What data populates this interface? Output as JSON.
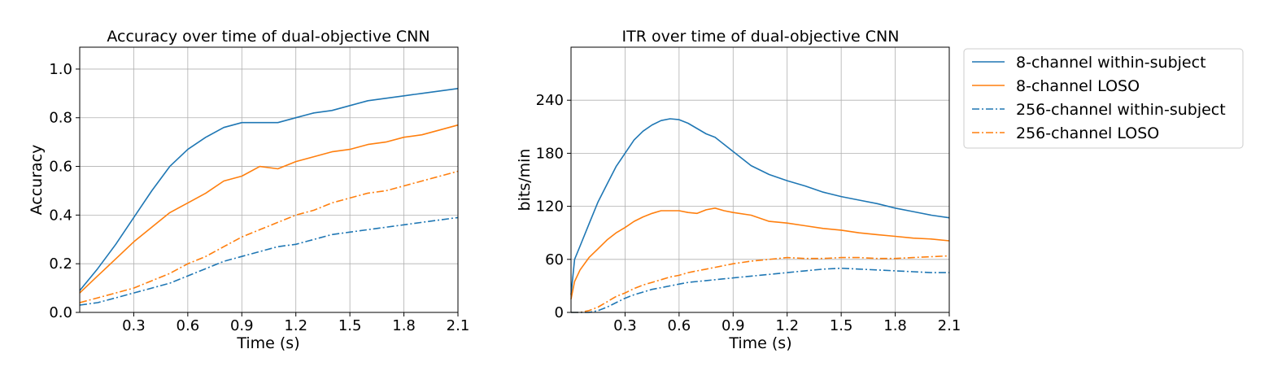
{
  "figure": {
    "legend": {
      "placement": "outside-right-top",
      "entries": [
        {
          "label": "8-channel within-subject",
          "color": "#1f77b4",
          "dash": "solid"
        },
        {
          "label": "8-channel LOSO",
          "color": "#ff7f0e",
          "dash": "solid"
        },
        {
          "label": "256-channel within-subject",
          "color": "#1f77b4",
          "dash": "dashdot"
        },
        {
          "label": "256-channel LOSO",
          "color": "#ff7f0e",
          "dash": "dashdot"
        }
      ]
    }
  },
  "chart_data": [
    {
      "type": "line",
      "title": "Accuracy over time of dual-objective CNN",
      "xlabel": "Time (s)",
      "ylabel": "Accuracy",
      "xlim": [
        0.0,
        2.1
      ],
      "ylim": [
        0.0,
        1.09
      ],
      "xticks": [
        0.3,
        0.6,
        0.9,
        1.2,
        1.5,
        1.8,
        2.1
      ],
      "xtick_labels": [
        "0.3",
        "0.6",
        "0.9",
        "1.2",
        "1.5",
        "1.8",
        "2.1"
      ],
      "yticks": [
        0.0,
        0.2,
        0.4,
        0.6,
        0.8,
        1.0
      ],
      "ytick_labels": [
        "0.0",
        "0.2",
        "0.4",
        "0.6",
        "0.8",
        "1.0"
      ],
      "grid": true,
      "x": [
        0.0,
        0.1,
        0.2,
        0.3,
        0.4,
        0.5,
        0.6,
        0.7,
        0.8,
        0.9,
        1.0,
        1.1,
        1.2,
        1.3,
        1.4,
        1.5,
        1.6,
        1.7,
        1.8,
        1.9,
        2.0,
        2.1
      ],
      "series": [
        {
          "name": "8-channel within-subject",
          "color": "#1f77b4",
          "dash": "solid",
          "values": [
            0.09,
            0.18,
            0.28,
            0.39,
            0.5,
            0.6,
            0.67,
            0.72,
            0.76,
            0.78,
            0.78,
            0.78,
            0.8,
            0.82,
            0.83,
            0.85,
            0.87,
            0.88,
            0.89,
            0.9,
            0.91,
            0.92
          ]
        },
        {
          "name": "8-channel LOSO",
          "color": "#ff7f0e",
          "dash": "solid",
          "values": [
            0.08,
            0.15,
            0.22,
            0.29,
            0.35,
            0.41,
            0.45,
            0.49,
            0.54,
            0.56,
            0.6,
            0.59,
            0.62,
            0.64,
            0.66,
            0.67,
            0.69,
            0.7,
            0.72,
            0.73,
            0.75,
            0.77
          ]
        },
        {
          "name": "256-channel LOSO",
          "color": "#ff7f0e",
          "dash": "dashdot",
          "values": [
            0.04,
            0.06,
            0.08,
            0.1,
            0.13,
            0.16,
            0.2,
            0.23,
            0.27,
            0.31,
            0.34,
            0.37,
            0.4,
            0.42,
            0.45,
            0.47,
            0.49,
            0.5,
            0.52,
            0.54,
            0.56,
            0.58
          ]
        },
        {
          "name": "256-channel within-subject",
          "color": "#1f77b4",
          "dash": "dashdot",
          "values": [
            0.03,
            0.04,
            0.06,
            0.08,
            0.1,
            0.12,
            0.15,
            0.18,
            0.21,
            0.23,
            0.25,
            0.27,
            0.28,
            0.3,
            0.32,
            0.33,
            0.34,
            0.35,
            0.36,
            0.37,
            0.38,
            0.39
          ]
        }
      ]
    },
    {
      "type": "line",
      "title": "ITR over time of dual-objective CNN",
      "xlabel": "Time (s)",
      "ylabel": "bits/min",
      "xlim": [
        0.0,
        2.1
      ],
      "ylim": [
        0,
        300
      ],
      "xticks": [
        0.3,
        0.6,
        0.9,
        1.2,
        1.5,
        1.8,
        2.1
      ],
      "xtick_labels": [
        "0.3",
        "0.6",
        "0.9",
        "1.2",
        "1.5",
        "1.8",
        "2.1"
      ],
      "yticks": [
        0,
        60,
        120,
        180,
        240
      ],
      "ytick_labels": [
        "0",
        "60",
        "120",
        "180",
        "240"
      ],
      "grid": true,
      "x": [
        0.0,
        0.02,
        0.05,
        0.1,
        0.15,
        0.2,
        0.25,
        0.3,
        0.35,
        0.4,
        0.45,
        0.5,
        0.55,
        0.6,
        0.65,
        0.7,
        0.75,
        0.8,
        0.85,
        0.9,
        1.0,
        1.1,
        1.2,
        1.3,
        1.4,
        1.5,
        1.6,
        1.7,
        1.8,
        1.9,
        2.0,
        2.1
      ],
      "series": [
        {
          "name": "8-channel within-subject",
          "color": "#1f77b4",
          "dash": "solid",
          "values": [
            20,
            60,
            75,
            100,
            125,
            145,
            165,
            180,
            195,
            205,
            212,
            217,
            219,
            218,
            214,
            208,
            202,
            198,
            190,
            182,
            166,
            156,
            149,
            143,
            136,
            131,
            127,
            123,
            118,
            114,
            110,
            107
          ]
        },
        {
          "name": "8-channel LOSO",
          "color": "#ff7f0e",
          "dash": "solid",
          "values": [
            15,
            35,
            48,
            62,
            72,
            82,
            90,
            96,
            103,
            108,
            112,
            115,
            115,
            115,
            113,
            112,
            116,
            118,
            115,
            113,
            110,
            103,
            101,
            98,
            95,
            93,
            90,
            88,
            86,
            84,
            83,
            81
          ]
        },
        {
          "name": "256-channel LOSO",
          "color": "#ff7f0e",
          "dash": "dashdot",
          "values": [
            0,
            0,
            0,
            2,
            6,
            12,
            18,
            22,
            27,
            31,
            34,
            37,
            40,
            42,
            45,
            47,
            49,
            51,
            53,
            55,
            58,
            60,
            62,
            61,
            61,
            62,
            62,
            61,
            61,
            62,
            63,
            64
          ]
        },
        {
          "name": "256-channel within-subject",
          "color": "#1f77b4",
          "dash": "dashdot",
          "values": [
            0,
            0,
            0,
            0,
            2,
            6,
            11,
            16,
            20,
            23,
            26,
            28,
            30,
            32,
            34,
            35,
            36,
            37,
            38,
            39,
            41,
            43,
            45,
            47,
            49,
            50,
            49,
            48,
            47,
            46,
            45,
            45
          ]
        }
      ]
    }
  ]
}
